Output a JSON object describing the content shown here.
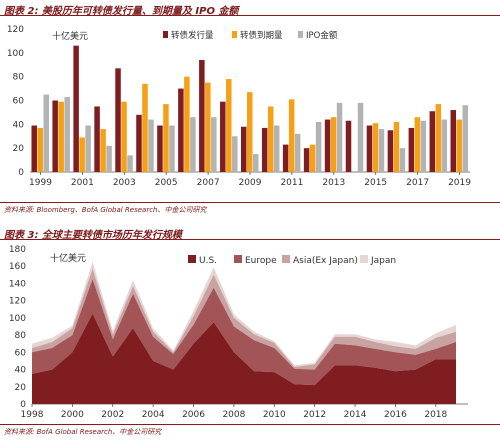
{
  "figure2": {
    "title": "图表 2: 美股历年可转债发行量、到期量及 IPO 金额",
    "source": "资料来源: Bloomberg、BofA Global Research、中金公司研究"
  },
  "figure3": {
    "title": "图表 3: 全球主要转债市场历年发行规模",
    "source": "资料来源: BofA Global Research、中金公司研究"
  },
  "colors": {
    "dark_red": "#7f1d20",
    "orange": "#f5a017",
    "grey": "#b3b3b3",
    "us": "#7f1d20",
    "europe": "#a25457",
    "asia": "#c9a3a1",
    "japan": "#e5d6d4"
  },
  "chart_data": [
    {
      "type": "bar",
      "unit_label": "十亿美元",
      "ylim": [
        0,
        120
      ],
      "yticks": [
        0,
        20,
        40,
        60,
        80,
        100,
        120
      ],
      "grid": false,
      "legend_position": "top-right",
      "categories": [
        "1999",
        "2000",
        "2001",
        "2002",
        "2003",
        "2004",
        "2005",
        "2006",
        "2007",
        "2008",
        "2009",
        "2010",
        "2011",
        "2012",
        "2013",
        "2014",
        "2015",
        "2016",
        "2017",
        "2018",
        "2019"
      ],
      "xtick_labels": [
        "1999",
        "2001",
        "2003",
        "2005",
        "2007",
        "2009",
        "2011",
        "2013",
        "2015",
        "2017",
        "2019"
      ],
      "series": [
        {
          "name": "转债发行量",
          "values": [
            39,
            60,
            106,
            55,
            87,
            48,
            39,
            70,
            94,
            59,
            38,
            37,
            23,
            20,
            44,
            43,
            39,
            35,
            37,
            51,
            52
          ]
        },
        {
          "name": "转债到期量",
          "values": [
            37,
            59,
            29,
            36,
            59,
            74,
            57,
            80,
            75,
            78,
            67,
            55,
            61,
            23,
            46,
            0,
            41,
            42,
            46,
            57,
            44
          ]
        },
        {
          "name": "IPO金额",
          "values": [
            65,
            63,
            39,
            22,
            14,
            44,
            39,
            46,
            46,
            30,
            15,
            39,
            32,
            42,
            58,
            58,
            36,
            20,
            43,
            44,
            56
          ]
        }
      ]
    },
    {
      "type": "area",
      "unit_label": "十亿美元",
      "ylim": [
        0,
        180
      ],
      "yticks": [
        0,
        20,
        40,
        60,
        80,
        100,
        120,
        140,
        160,
        180
      ],
      "grid": false,
      "legend_position": "top",
      "x": [
        1998,
        1999,
        2000,
        2001,
        2002,
        2003,
        2004,
        2005,
        2006,
        2007,
        2008,
        2009,
        2010,
        2011,
        2012,
        2013,
        2014,
        2015,
        2016,
        2017,
        2018,
        2019
      ],
      "xtick_labels": [
        "1998",
        "2000",
        "2002",
        "2004",
        "2006",
        "2008",
        "2010",
        "2012",
        "2014",
        "2016",
        "2018"
      ],
      "series": [
        {
          "name": "U.S.",
          "values": [
            35,
            40,
            60,
            105,
            55,
            88,
            50,
            40,
            70,
            95,
            60,
            38,
            37,
            23,
            22,
            45,
            45,
            42,
            38,
            40,
            52,
            52
          ]
        },
        {
          "name": "Europe",
          "values": [
            25,
            25,
            20,
            40,
            20,
            40,
            28,
            18,
            22,
            40,
            30,
            36,
            28,
            18,
            18,
            25,
            23,
            22,
            22,
            17,
            12,
            20
          ]
        },
        {
          "name": "Asia(Ex Japan)",
          "values": [
            5,
            7,
            8,
            12,
            6,
            9,
            6,
            2,
            10,
            15,
            10,
            7,
            6,
            2,
            6,
            8,
            10,
            8,
            7,
            7,
            13,
            12
          ]
        },
        {
          "name": "Japan",
          "values": [
            5,
            5,
            3,
            8,
            4,
            7,
            4,
            2,
            6,
            9,
            4,
            3,
            2,
            2,
            2,
            3,
            3,
            3,
            5,
            4,
            5,
            8
          ]
        }
      ]
    }
  ]
}
